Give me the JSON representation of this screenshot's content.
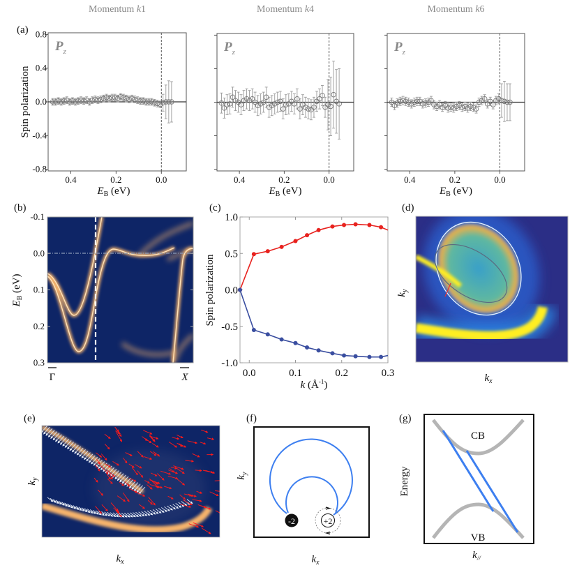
{
  "panel_labels": {
    "a": "(a)",
    "b": "(b)",
    "c": "(c)",
    "d": "(d)",
    "e": "(e)",
    "f": "(f)",
    "g": "(g)"
  },
  "colors": {
    "red_series": "#e8221e",
    "blue_series": "#3a4ea0",
    "band": "#f7b46c",
    "map_background": "#0e2566",
    "diagram_line": "#3d7ff0",
    "gray_band": "#b5b5b5"
  },
  "chart_data": [
    {
      "panel": "a",
      "type": "scatter",
      "ylabel": "Spin polarization",
      "xlabel_main": "E",
      "xlabel_sub": "B",
      "xlabel_unit": " (eV)",
      "ylim": [
        -0.82,
        0.82
      ],
      "xlim": [
        0.5,
        -0.11
      ],
      "x_reversed": true,
      "yticks": [
        "0.8",
        "0.4",
        "0.0",
        "-0.4",
        "-0.8"
      ],
      "ytick_values": [
        0.8,
        0.4,
        0.0,
        -0.4,
        -0.8
      ],
      "xticks": [
        "0.4",
        "0.2",
        "0.0"
      ],
      "xtick_values": [
        0.4,
        0.2,
        0.0
      ],
      "inset_label_main": "P",
      "inset_label_sub": "z",
      "reference_lines": {
        "horizontal_y": 0.0,
        "vertical_dashed_x": 0.0
      },
      "subplots": [
        {
          "title_main": "Momentum ",
          "title_k": "k",
          "title_num": "1",
          "x": [
            0.48,
            0.4675,
            0.455,
            0.4425,
            0.43,
            0.4175,
            0.405,
            0.3925,
            0.38,
            0.3675,
            0.355,
            0.3425,
            0.33,
            0.3175,
            0.305,
            0.2925,
            0.28,
            0.2675,
            0.255,
            0.2425,
            0.23,
            0.2175,
            0.205,
            0.1925,
            0.18,
            0.1675,
            0.155,
            0.1425,
            0.13,
            0.1175,
            0.105,
            0.0925,
            0.08,
            0.0675,
            0.055,
            0.0425,
            0.03,
            0.0175,
            0.005,
            -0.0075,
            -0.02,
            -0.0325,
            -0.045
          ],
          "y": [
            0.0,
            0.0,
            0.01,
            0.0,
            0.01,
            0.02,
            0.0,
            0.01,
            0.0,
            0.01,
            0.02,
            0.01,
            0.02,
            0.0,
            0.02,
            0.03,
            0.02,
            0.03,
            0.04,
            0.05,
            0.04,
            0.05,
            0.05,
            0.04,
            0.06,
            0.05,
            0.04,
            0.03,
            0.04,
            0.03,
            0.02,
            0.01,
            0.01,
            0.0,
            0.0,
            0.0,
            -0.01,
            -0.02,
            -0.03,
            -0.01,
            0.0,
            0.0,
            0.0
          ],
          "yerr": [
            0.04,
            0.04,
            0.04,
            0.04,
            0.04,
            0.04,
            0.04,
            0.04,
            0.04,
            0.04,
            0.04,
            0.04,
            0.04,
            0.04,
            0.04,
            0.04,
            0.04,
            0.04,
            0.04,
            0.04,
            0.04,
            0.04,
            0.04,
            0.04,
            0.04,
            0.04,
            0.04,
            0.04,
            0.04,
            0.04,
            0.04,
            0.04,
            0.04,
            0.04,
            0.04,
            0.04,
            0.04,
            0.04,
            0.04,
            0.1,
            0.2,
            0.25,
            0.24
          ]
        },
        {
          "title_main": "Momentum ",
          "title_k": "k",
          "title_num": "4",
          "x": [
            0.48,
            0.4675,
            0.455,
            0.4425,
            0.43,
            0.4175,
            0.405,
            0.3925,
            0.38,
            0.3675,
            0.355,
            0.3425,
            0.33,
            0.3175,
            0.305,
            0.2925,
            0.28,
            0.2675,
            0.255,
            0.2425,
            0.23,
            0.2175,
            0.205,
            0.1925,
            0.18,
            0.1675,
            0.155,
            0.1425,
            0.13,
            0.1175,
            0.105,
            0.0925,
            0.08,
            0.0675,
            0.055,
            0.0425,
            0.03,
            0.0175,
            0.005,
            -0.0075,
            -0.02,
            -0.0325,
            -0.045
          ],
          "y": [
            -0.01,
            -0.07,
            -0.03,
            -0.02,
            0.06,
            0.02,
            0.0,
            -0.03,
            0.02,
            0.04,
            0.02,
            0.04,
            0.0,
            -0.04,
            -0.02,
            0.0,
            0.06,
            -0.06,
            -0.04,
            -0.02,
            0.0,
            0.01,
            -0.08,
            -0.03,
            -0.02,
            0.01,
            -0.02,
            0.04,
            -0.08,
            -0.03,
            -0.06,
            -0.08,
            -0.09,
            -0.06,
            0.01,
            0.04,
            0.08,
            -0.06,
            -0.03,
            -0.05,
            0.09,
            0.01,
            -0.02
          ],
          "yerr": [
            0.12,
            0.12,
            0.12,
            0.12,
            0.12,
            0.12,
            0.12,
            0.12,
            0.12,
            0.12,
            0.12,
            0.12,
            0.12,
            0.12,
            0.12,
            0.12,
            0.12,
            0.12,
            0.12,
            0.12,
            0.12,
            0.12,
            0.12,
            0.12,
            0.12,
            0.12,
            0.12,
            0.12,
            0.12,
            0.12,
            0.12,
            0.12,
            0.12,
            0.12,
            0.12,
            0.12,
            0.12,
            0.12,
            0.3,
            0.35,
            0.4,
            0.38,
            0.42
          ]
        },
        {
          "title_main": "Momentum ",
          "title_k": "k",
          "title_num": "6",
          "x": [
            0.48,
            0.4675,
            0.455,
            0.4425,
            0.43,
            0.4175,
            0.405,
            0.3925,
            0.38,
            0.3675,
            0.355,
            0.3425,
            0.33,
            0.3175,
            0.305,
            0.2925,
            0.28,
            0.2675,
            0.255,
            0.2425,
            0.23,
            0.2175,
            0.205,
            0.1925,
            0.18,
            0.1675,
            0.155,
            0.1425,
            0.13,
            0.1175,
            0.105,
            0.0925,
            0.08,
            0.0675,
            0.055,
            0.0425,
            0.03,
            0.0175,
            0.005,
            -0.0075,
            -0.02,
            -0.0325,
            -0.045
          ],
          "y": [
            0.0,
            -0.04,
            -0.01,
            0.01,
            0.02,
            0.01,
            0.0,
            -0.02,
            0.0,
            0.01,
            0.01,
            -0.02,
            -0.01,
            0.0,
            0.02,
            -0.03,
            -0.05,
            -0.03,
            -0.06,
            -0.04,
            -0.07,
            -0.06,
            -0.07,
            -0.05,
            -0.04,
            -0.06,
            -0.05,
            -0.07,
            -0.05,
            -0.06,
            -0.08,
            0.0,
            0.02,
            0.04,
            -0.02,
            0.01,
            -0.03,
            0.02,
            0.04,
            0.02,
            0.01,
            0.0,
            0.0
          ],
          "yerr": [
            0.05,
            0.05,
            0.05,
            0.05,
            0.05,
            0.05,
            0.05,
            0.05,
            0.05,
            0.05,
            0.05,
            0.05,
            0.05,
            0.05,
            0.05,
            0.05,
            0.05,
            0.05,
            0.05,
            0.05,
            0.05,
            0.05,
            0.05,
            0.05,
            0.05,
            0.05,
            0.05,
            0.05,
            0.05,
            0.05,
            0.05,
            0.05,
            0.05,
            0.05,
            0.05,
            0.05,
            0.05,
            0.05,
            0.06,
            0.2,
            0.24,
            0.22,
            0.22
          ]
        }
      ]
    },
    {
      "panel": "c",
      "type": "line",
      "ylabel": "Spin polarization",
      "xlabel_main": "k",
      "xlabel_unit": " (Å",
      "xlabel_sup": "-1",
      "xlabel_close": ")",
      "xlim": [
        -0.02,
        0.3
      ],
      "ylim": [
        -1.0,
        1.0
      ],
      "xticks": [
        "0.0",
        "0.1",
        "0.2",
        "0.3"
      ],
      "xtick_values": [
        0.0,
        0.1,
        0.2,
        0.3
      ],
      "yticks": [
        "1.0",
        "0.5",
        "0.0",
        "-0.5",
        "-1.0"
      ],
      "ytick_values": [
        1.0,
        0.5,
        0.0,
        -0.5,
        -1.0
      ],
      "x": [
        -0.02,
        0.01,
        0.04,
        0.07,
        0.1,
        0.125,
        0.15,
        0.18,
        0.205,
        0.23,
        0.26,
        0.285,
        0.3
      ],
      "series": [
        {
          "color": "#e8221e",
          "values": [
            0.0,
            0.49,
            0.53,
            0.59,
            0.67,
            0.75,
            0.82,
            0.87,
            0.89,
            0.9,
            0.89,
            0.86,
            0.82
          ]
        },
        {
          "color": "#3a4ea0",
          "values": [
            0.0,
            -0.55,
            -0.61,
            -0.68,
            -0.73,
            -0.79,
            -0.83,
            -0.87,
            -0.9,
            -0.91,
            -0.92,
            -0.92,
            -0.9
          ]
        }
      ]
    }
  ],
  "panel_b": {
    "ylabel_main": "E",
    "ylabel_sub": "B",
    "ylabel_unit": " (eV)",
    "yticks": [
      "-0.1",
      "0.0",
      "0.1",
      "0.2",
      "0.3"
    ],
    "ytick_values": [
      -0.1,
      0.0,
      0.1,
      0.2,
      0.3
    ],
    "xlabel_left": "Γ",
    "xlabel_right": "X"
  },
  "panel_d": {
    "xlabel_main": "k",
    "xlabel_sub": "x",
    "ylabel_main": "k",
    "ylabel_sub": "y"
  },
  "panel_e": {
    "xlabel_main": "k",
    "xlabel_sub": "x",
    "ylabel_main": "k",
    "ylabel_sub": "y"
  },
  "panel_f": {
    "xlabel_main": "k",
    "xlabel_sub": "x",
    "ylabel_main": "k",
    "ylabel_sub": "y",
    "charge_neg": "-2",
    "charge_pos": "+2"
  },
  "panel_g": {
    "ylabel": "Energy",
    "xlabel_main": "k",
    "xlabel_sub": "//",
    "cb_label": "CB",
    "vb_label": "VB"
  }
}
